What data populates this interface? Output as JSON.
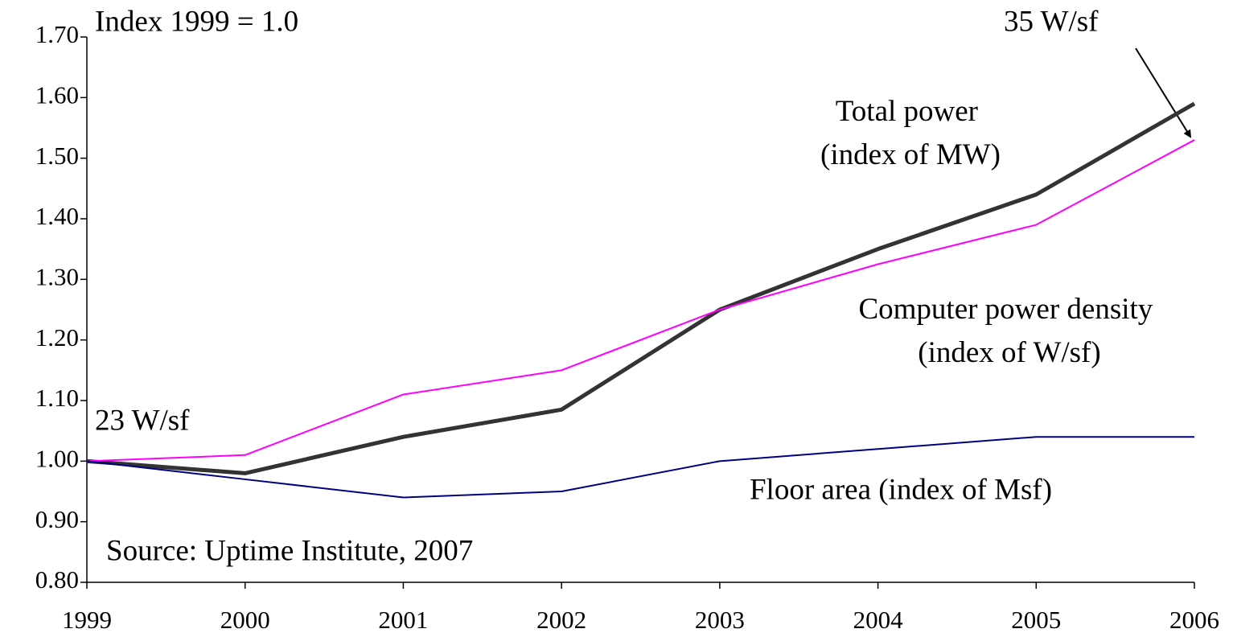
{
  "chart_data": {
    "type": "line",
    "x": [
      1999,
      2000,
      2001,
      2002,
      2003,
      2004,
      2005,
      2006
    ],
    "xlim": [
      1999,
      2006
    ],
    "xticks": [
      1999,
      2000,
      2001,
      2002,
      2003,
      2004,
      2005,
      2006
    ],
    "ylim": [
      0.8,
      1.7
    ],
    "yticks": [
      {
        "value": 0.8,
        "label": "0.80"
      },
      {
        "value": 0.9,
        "label": "0.90"
      },
      {
        "value": 1.0,
        "label": "1.00"
      },
      {
        "value": 1.1,
        "label": "1.10"
      },
      {
        "value": 1.2,
        "label": "1.20"
      },
      {
        "value": 1.3,
        "label": "1.30"
      },
      {
        "value": 1.4,
        "label": "1.40"
      },
      {
        "value": 1.5,
        "label": "1.50"
      },
      {
        "value": 1.6,
        "label": "1.60"
      },
      {
        "value": 1.7,
        "label": "1.70"
      }
    ],
    "series": [
      {
        "name": "Total power (index of MW)",
        "color": "#333333",
        "values": [
          1.0,
          0.98,
          1.04,
          1.085,
          1.25,
          1.35,
          1.44,
          1.59
        ]
      },
      {
        "name": "Computer power density (index of W/sf)",
        "color": "#ff00ff",
        "values": [
          1.0,
          1.01,
          1.11,
          1.15,
          1.25,
          1.325,
          1.39,
          1.53
        ]
      },
      {
        "name": "Floor area (index of Msf)",
        "color": "#000080",
        "values": [
          1.0,
          0.97,
          0.94,
          0.95,
          1.0,
          1.02,
          1.04,
          1.04
        ]
      }
    ],
    "annotations": [
      "Index 1999 = 1.0",
      "35 W/sf",
      "23 W/sf",
      "Source:  Uptime Institute, 2007"
    ]
  }
}
